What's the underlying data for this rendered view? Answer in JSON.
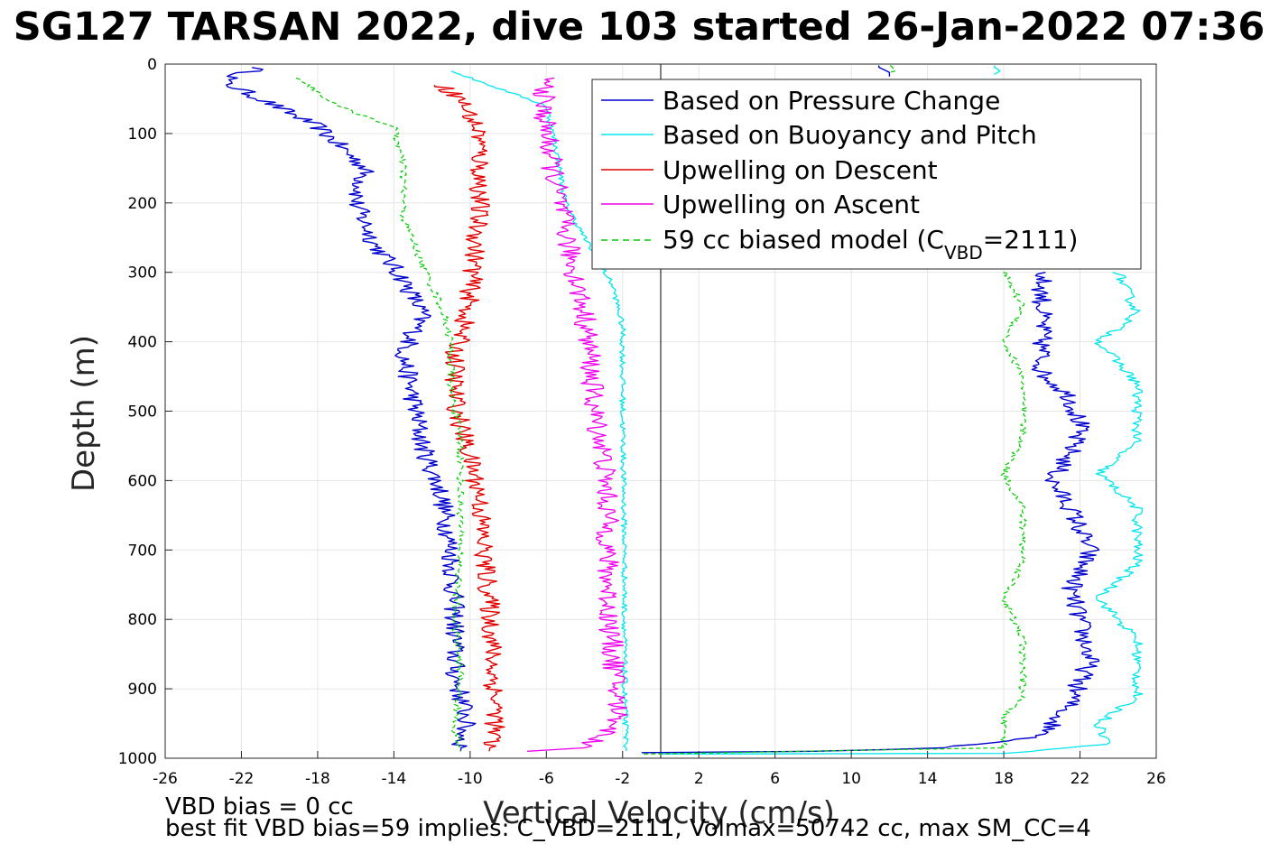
{
  "chart_data": {
    "type": "line",
    "title": "SG127 TARSAN 2022, dive 103 started 26-Jan-2022 07:36",
    "xlabel": "Vertical Velocity (cm/s)",
    "ylabel": "Depth (m)",
    "xlim": [
      -26,
      26
    ],
    "ylim": [
      0,
      1000
    ],
    "y_reversed": true,
    "grid": true,
    "x_ticks": [
      "-26",
      "-22",
      "-18",
      "-14",
      "-10",
      "-6",
      "-2",
      "2",
      "6",
      "10",
      "14",
      "18",
      "22",
      "26"
    ],
    "y_ticks": [
      "0",
      "100",
      "200",
      "300",
      "400",
      "500",
      "600",
      "700",
      "800",
      "900",
      "1000"
    ],
    "legend_position": "top-right",
    "legend": [
      {
        "label": "Based on Pressure Change",
        "color": "#0000cc",
        "style": "solid"
      },
      {
        "label": "Based on Buoyancy and Pitch",
        "color": "#00e5ee",
        "style": "solid"
      },
      {
        "label": "Upwelling on Descent",
        "color": "#e00000",
        "style": "solid"
      },
      {
        "label": "Upwelling on Ascent",
        "color": "#ee00ee",
        "style": "solid"
      },
      {
        "label_main": "59 cc biased model (C",
        "label_sub": "VBD",
        "label_tail": "=2111)",
        "color": "#00cc00",
        "style": "dashed"
      }
    ],
    "series": [
      {
        "key": "pressure_descent",
        "color": "#0000cc",
        "width": 1.4,
        "jitter": 0.55,
        "points": [
          [
            -21,
            5
          ],
          [
            -23,
            25
          ],
          [
            -21,
            50
          ],
          [
            -18,
            90
          ],
          [
            -15.5,
            150
          ],
          [
            -16,
            200
          ],
          [
            -15,
            260
          ],
          [
            -13.5,
            310
          ],
          [
            -12.5,
            360
          ],
          [
            -13.5,
            420
          ],
          [
            -13,
            480
          ],
          [
            -12.5,
            550
          ],
          [
            -11.5,
            620
          ],
          [
            -11,
            700
          ],
          [
            -10.8,
            800
          ],
          [
            -10.8,
            880
          ],
          [
            -10.2,
            940
          ],
          [
            -10.5,
            990
          ]
        ]
      },
      {
        "key": "pressure_ascent",
        "color": "#0000cc",
        "width": 1.4,
        "jitter": 0.55,
        "points": [
          [
            20,
            300
          ],
          [
            20,
            340
          ],
          [
            20,
            400
          ],
          [
            20,
            445
          ],
          [
            21.5,
            480
          ],
          [
            22,
            520
          ],
          [
            21.5,
            560
          ],
          [
            20.5,
            600
          ],
          [
            21.5,
            640
          ],
          [
            22.5,
            700
          ],
          [
            21.5,
            760
          ],
          [
            22,
            800
          ],
          [
            22.5,
            860
          ],
          [
            21.5,
            920
          ],
          [
            20,
            970
          ],
          [
            15,
            985
          ],
          [
            8,
            990
          ],
          [
            -1,
            992
          ]
        ]
      },
      {
        "key": "pressure_top",
        "color": "#0000cc",
        "width": 1.4,
        "jitter": 0.2,
        "points": [
          [
            11.5,
            2
          ],
          [
            12,
            12
          ],
          [
            12,
            18
          ]
        ]
      },
      {
        "key": "buoyancy_descent",
        "color": "#00e5ee",
        "width": 1.3,
        "jitter": 0.15,
        "points": [
          [
            -11,
            10
          ],
          [
            -9,
            30
          ],
          [
            -6,
            60
          ],
          [
            -5.5,
            120
          ],
          [
            -5,
            200
          ],
          [
            -4,
            250
          ],
          [
            -2.5,
            320
          ],
          [
            -2,
            380
          ],
          [
            -2,
            500
          ],
          [
            -1.9,
            700
          ],
          [
            -1.9,
            900
          ],
          [
            -1.8,
            990
          ]
        ]
      },
      {
        "key": "buoyancy_ascent",
        "color": "#00e5ee",
        "width": 1.3,
        "jitter": 0.3,
        "points": [
          [
            24,
            300
          ],
          [
            25,
            360
          ],
          [
            23,
            400
          ],
          [
            25,
            460
          ],
          [
            25,
            540
          ],
          [
            23,
            590
          ],
          [
            25,
            640
          ],
          [
            25,
            720
          ],
          [
            23,
            770
          ],
          [
            25,
            830
          ],
          [
            25,
            910
          ],
          [
            23,
            950
          ],
          [
            23.5,
            980
          ],
          [
            18,
            993
          ],
          [
            0,
            994
          ]
        ]
      },
      {
        "key": "buoyancy_top",
        "color": "#00e5ee",
        "width": 1.3,
        "jitter": 0.1,
        "points": [
          [
            17.5,
            2
          ],
          [
            17.8,
            10
          ],
          [
            17.5,
            15
          ]
        ]
      },
      {
        "key": "descent_upwelling",
        "color": "#e00000",
        "width": 1.4,
        "jitter": 0.55,
        "points": [
          [
            -11.5,
            30
          ],
          [
            -10.5,
            50
          ],
          [
            -9.5,
            100
          ],
          [
            -9.5,
            200
          ],
          [
            -9.8,
            290
          ],
          [
            -10,
            330
          ],
          [
            -10.2,
            360
          ],
          [
            -10.8,
            420
          ],
          [
            -10.8,
            480
          ],
          [
            -10.5,
            520
          ],
          [
            -10,
            570
          ],
          [
            -9.5,
            620
          ],
          [
            -9.3,
            700
          ],
          [
            -8.9,
            800
          ],
          [
            -8.8,
            880
          ],
          [
            -8.6,
            940
          ],
          [
            -9,
            990
          ]
        ]
      },
      {
        "key": "ascent_upwelling",
        "color": "#ee00ee",
        "width": 1.3,
        "jitter": 0.6,
        "points": [
          [
            -6,
            20
          ],
          [
            -6.2,
            60
          ],
          [
            -5.8,
            130
          ],
          [
            -5.3,
            200
          ],
          [
            -4.7,
            280
          ],
          [
            -4,
            360
          ],
          [
            -3.7,
            420
          ],
          [
            -3.5,
            500
          ],
          [
            -3,
            560
          ],
          [
            -2.8,
            640
          ],
          [
            -2.8,
            720
          ],
          [
            -2.7,
            800
          ],
          [
            -2.4,
            880
          ],
          [
            -2.2,
            950
          ],
          [
            -4,
            985
          ],
          [
            -7,
            990
          ]
        ]
      },
      {
        "key": "model_descent",
        "color": "#00cc00",
        "width": 1.2,
        "jitter": 0.2,
        "dashed": true,
        "points": [
          [
            -19,
            20
          ],
          [
            -17,
            60
          ],
          [
            -14,
            90
          ],
          [
            -13.5,
            150
          ],
          [
            -13.5,
            220
          ],
          [
            -12.5,
            290
          ],
          [
            -11.5,
            350
          ],
          [
            -11,
            400
          ],
          [
            -11,
            470
          ],
          [
            -10.5,
            540
          ],
          [
            -10.5,
            620
          ],
          [
            -10.5,
            700
          ],
          [
            -10.8,
            800
          ],
          [
            -10.5,
            880
          ],
          [
            -10.8,
            960
          ],
          [
            -10.5,
            990
          ]
        ]
      },
      {
        "key": "model_ascent",
        "color": "#00cc00",
        "width": 1.2,
        "jitter": 0.2,
        "dashed": true,
        "points": [
          [
            18,
            300
          ],
          [
            19,
            350
          ],
          [
            18,
            400
          ],
          [
            19,
            450
          ],
          [
            19,
            540
          ],
          [
            18,
            590
          ],
          [
            19,
            640
          ],
          [
            19,
            720
          ],
          [
            18,
            770
          ],
          [
            19,
            830
          ],
          [
            19,
            910
          ],
          [
            18,
            940
          ],
          [
            18,
            985
          ],
          [
            -1,
            994
          ]
        ]
      },
      {
        "key": "model_top",
        "color": "#00cc00",
        "width": 1.2,
        "jitter": 0.1,
        "dashed": true,
        "points": [
          [
            12,
            2
          ],
          [
            12.3,
            10
          ],
          [
            12,
            12
          ]
        ]
      }
    ]
  },
  "footer": {
    "line1": "VBD bias = 0 cc",
    "line2": "best fit VBD bias=59 implies: C_VBD=2111, Volmax=50742 cc, max SM_CC=4"
  }
}
